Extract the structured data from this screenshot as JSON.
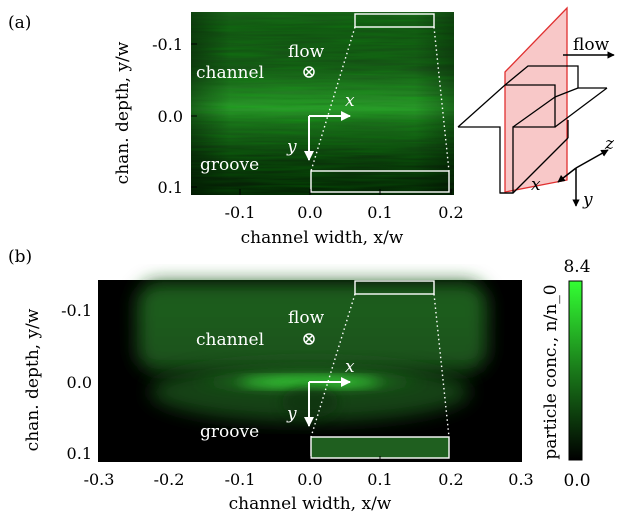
{
  "panels": {
    "a": {
      "label": "(a)",
      "x_axis_label": "channel width, x/w",
      "y_axis_label": "chan. depth, y/w",
      "x_ticks": [
        "-0.1",
        "0.0",
        "0.1",
        "0.2"
      ],
      "y_ticks": [
        "-0.1",
        "0.0",
        "0.1"
      ],
      "text_flow": "flow",
      "text_channel": "channel",
      "text_groove": "groove",
      "text_x": "x",
      "text_y": "y"
    },
    "b": {
      "label": "(b)",
      "x_axis_label": "channel width, x/w",
      "y_axis_label": "chan. depth, y/w",
      "x_ticks": [
        "-0.3",
        "-0.2",
        "-0.1",
        "0.0",
        "0.1",
        "0.2",
        "0.3"
      ],
      "y_ticks": [
        "-0.1",
        "0.0",
        "0.1"
      ],
      "text_flow": "flow",
      "text_channel": "channel",
      "text_groove": "groove",
      "text_x": "x",
      "text_y": "y"
    }
  },
  "schematic": {
    "flow_label": "flow",
    "axis_x": "x",
    "axis_y": "y",
    "axis_z": "z"
  },
  "colorbar": {
    "label": "particle conc., n/n_0",
    "max_label": "8.4",
    "min_label": "0.0",
    "color_max": "#33ff33",
    "color_min": "#000000"
  }
}
